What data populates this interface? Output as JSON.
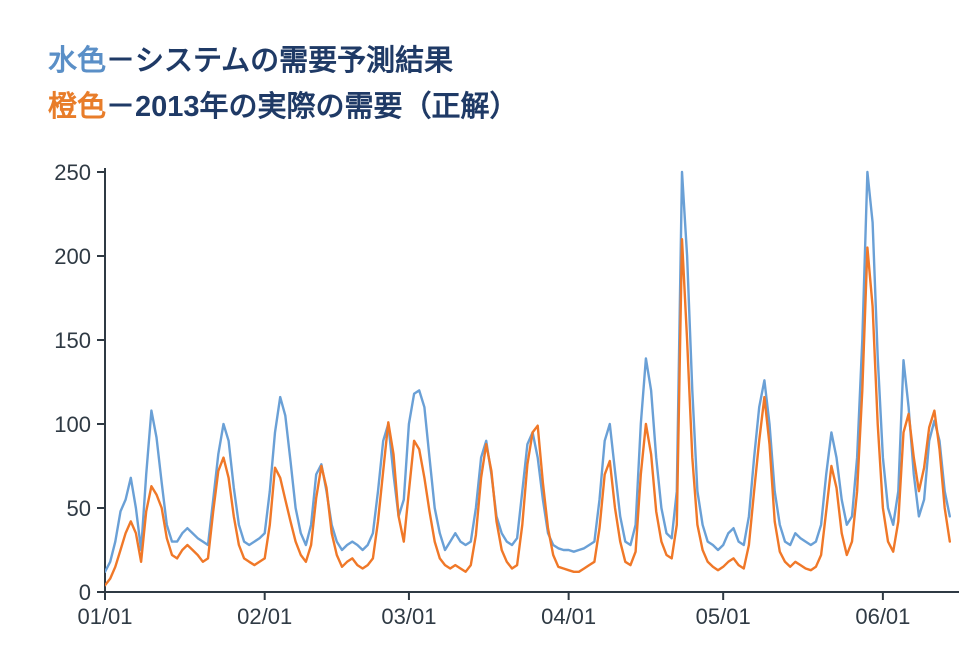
{
  "legend": {
    "series1_color_label": "水色",
    "series1_dash": "－",
    "series1_text": "システムの需要予測結果",
    "series2_color_label": "橙色",
    "series2_dash": "－ ",
    "series2_text": "2013年の実際の需要（正解）",
    "color_label1_hex": "#5a8fc7",
    "color_label2_hex": "#e87d2a",
    "text_hex": "#1f3a66"
  },
  "chart": {
    "type": "line",
    "background_color": "#ffffff",
    "axis_color": "#2f3a44",
    "axis_width": 2,
    "tick_fontsize": 22,
    "tick_color": "#2f3a44",
    "y": {
      "min": 0,
      "max": 250,
      "ticks": [
        0,
        50,
        100,
        150,
        200,
        250
      ]
    },
    "x": {
      "min": 0,
      "max": 165,
      "ticks": [
        {
          "pos": 0,
          "label": "01/01"
        },
        {
          "pos": 31,
          "label": "02/01"
        },
        {
          "pos": 59,
          "label": "03/01"
        },
        {
          "pos": 90,
          "label": "04/01"
        },
        {
          "pos": 120,
          "label": "05/01"
        },
        {
          "pos": 151,
          "label": "06/01"
        }
      ]
    },
    "series1": {
      "color": "#6aa0d6",
      "width": 2.4,
      "data": [
        12,
        18,
        30,
        48,
        55,
        68,
        50,
        25,
        70,
        108,
        92,
        65,
        40,
        30,
        30,
        35,
        38,
        35,
        32,
        30,
        28,
        55,
        82,
        100,
        90,
        62,
        40,
        30,
        28,
        30,
        32,
        35,
        60,
        95,
        116,
        105,
        78,
        50,
        35,
        28,
        40,
        70,
        76,
        60,
        40,
        30,
        25,
        28,
        30,
        28,
        25,
        28,
        35,
        60,
        90,
        100,
        70,
        45,
        55,
        100,
        118,
        120,
        110,
        80,
        50,
        35,
        25,
        30,
        35,
        30,
        28,
        30,
        50,
        80,
        90,
        70,
        45,
        35,
        30,
        28,
        32,
        60,
        88,
        95,
        80,
        55,
        35,
        28,
        26,
        25,
        25,
        24,
        25,
        26,
        28,
        30,
        55,
        90,
        100,
        72,
        45,
        30,
        28,
        40,
        100,
        139,
        120,
        80,
        50,
        35,
        32,
        60,
        250,
        200,
        120,
        60,
        40,
        30,
        28,
        25,
        28,
        35,
        38,
        30,
        28,
        45,
        80,
        110,
        126,
        100,
        60,
        40,
        30,
        28,
        35,
        32,
        30,
        28,
        30,
        40,
        70,
        95,
        80,
        55,
        40,
        45,
        80,
        150,
        250,
        220,
        140,
        80,
        50,
        40,
        60,
        138,
        110,
        70,
        45,
        55,
        90,
        102,
        90,
        60,
        45
      ],
      "estimated_from_gridlines": true
    },
    "series2": {
      "color": "#f07828",
      "width": 2.4,
      "data": [
        4,
        8,
        15,
        25,
        35,
        42,
        35,
        18,
        48,
        63,
        58,
        50,
        32,
        22,
        20,
        25,
        28,
        25,
        22,
        18,
        20,
        48,
        72,
        80,
        68,
        45,
        28,
        20,
        18,
        16,
        18,
        20,
        40,
        74,
        68,
        55,
        42,
        30,
        22,
        18,
        28,
        56,
        75,
        62,
        35,
        22,
        15,
        18,
        20,
        16,
        14,
        16,
        20,
        42,
        72,
        101,
        82,
        45,
        30,
        60,
        90,
        85,
        68,
        48,
        30,
        20,
        16,
        14,
        16,
        14,
        12,
        16,
        34,
        68,
        88,
        72,
        42,
        25,
        18,
        14,
        16,
        40,
        76,
        95,
        99,
        65,
        38,
        22,
        15,
        14,
        13,
        12,
        12,
        14,
        16,
        18,
        38,
        70,
        78,
        50,
        30,
        18,
        16,
        24,
        70,
        100,
        82,
        48,
        30,
        22,
        20,
        40,
        210,
        150,
        80,
        40,
        25,
        18,
        15,
        13,
        15,
        18,
        20,
        16,
        14,
        28,
        60,
        90,
        116,
        88,
        42,
        24,
        18,
        15,
        18,
        16,
        14,
        13,
        15,
        22,
        48,
        75,
        62,
        35,
        22,
        30,
        60,
        120,
        205,
        170,
        100,
        50,
        30,
        24,
        42,
        95,
        106,
        80,
        60,
        74,
        98,
        108,
        85,
        50,
        30
      ],
      "estimated_from_gridlines": true
    }
  }
}
